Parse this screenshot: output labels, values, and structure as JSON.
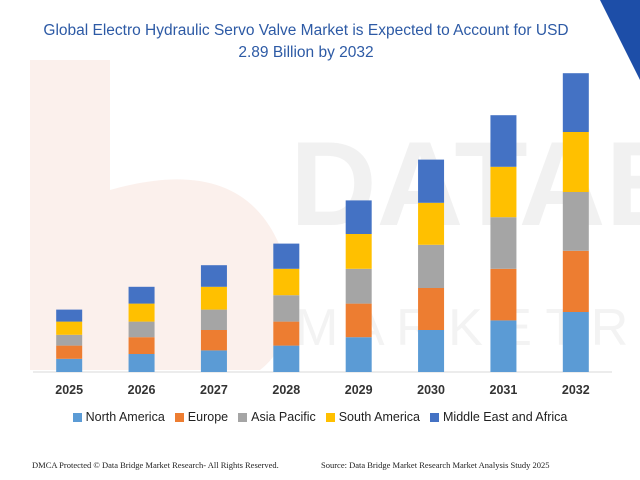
{
  "title_line1": "Global Electro Hydraulic Servo Valve Market is Expected to Account for USD",
  "title_line2": "2.89 Billion by 2032",
  "watermark": {
    "word1": "DATABR",
    "word2": "M A R K E T  R E"
  },
  "footer": {
    "left": "DMCA Protected © Data Bridge Market Research- All Rights Reserved.",
    "right": "Source: Data Bridge Market Research  Market Analysis Study 2025"
  },
  "colors": {
    "accent": "#1d4ea8",
    "title": "#2d5aa5",
    "axis": "#d9d9d9"
  },
  "chart_data": {
    "type": "bar",
    "stacked": true,
    "title": "Global Electro Hydraulic Servo Valve Market is Expected to Account for USD 2.89 Billion by 2032",
    "xlabel": "",
    "ylabel": "",
    "categories": [
      "2025",
      "2026",
      "2027",
      "2028",
      "2029",
      "2030",
      "2031",
      "2032"
    ],
    "ylim": [
      0,
      250
    ],
    "legend_position": "bottom",
    "grid": false,
    "series": [
      {
        "name": "North America",
        "color": "#5b9bd5",
        "values": [
          11,
          15,
          18,
          22,
          29,
          35,
          43,
          50
        ]
      },
      {
        "name": "Europe",
        "color": "#ed7d31",
        "values": [
          11,
          14,
          17,
          20,
          28,
          35,
          43,
          51
        ]
      },
      {
        "name": "Asia Pacific",
        "color": "#a5a5a5",
        "values": [
          9,
          13,
          17,
          22,
          29,
          36,
          43,
          49
        ]
      },
      {
        "name": "South America",
        "color": "#ffc000",
        "values": [
          11,
          15,
          19,
          22,
          29,
          35,
          42,
          50
        ]
      },
      {
        "name": "Middle East and Africa",
        "color": "#4472c4",
        "values": [
          10,
          14,
          18,
          21,
          28,
          36,
          43,
          49
        ]
      }
    ]
  }
}
